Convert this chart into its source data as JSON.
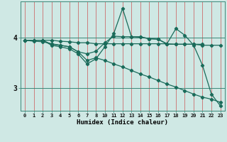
{
  "xlabel": "Humidex (Indice chaleur)",
  "bg_color": "#cfe8e4",
  "line_color": "#1a6b5a",
  "x_all": [
    0,
    1,
    2,
    3,
    4,
    5,
    6,
    7,
    8,
    10,
    11,
    12,
    13,
    14,
    15,
    16,
    17,
    18,
    19,
    20,
    21,
    22,
    23
  ],
  "ylim": [
    2.55,
    4.72
  ],
  "yticks": [
    3,
    4
  ],
  "lines": [
    {
      "x": [
        0,
        1,
        2,
        3,
        4,
        5,
        6,
        7,
        8,
        10,
        11,
        12,
        13,
        14,
        15,
        16,
        17,
        18,
        19,
        20,
        21,
        22,
        23
      ],
      "y": [
        3.95,
        3.95,
        3.95,
        3.95,
        3.93,
        3.92,
        3.9,
        3.9,
        3.88,
        3.88,
        3.88,
        3.88,
        3.88,
        3.88,
        3.88,
        3.88,
        3.88,
        3.87,
        3.87,
        3.87,
        3.85,
        3.85,
        3.85
      ]
    },
    {
      "x": [
        0,
        1,
        2,
        3,
        4,
        5,
        6,
        7,
        8,
        10,
        11,
        12,
        13,
        14,
        15,
        16,
        17,
        18,
        19,
        20,
        21
      ],
      "y": [
        3.95,
        3.95,
        3.95,
        3.87,
        3.85,
        3.82,
        3.72,
        3.68,
        3.73,
        3.9,
        4.03,
        4.02,
        4.02,
        4.01,
        3.98,
        3.97,
        3.87,
        3.87,
        3.87,
        3.87,
        3.87
      ]
    },
    {
      "x": [
        0,
        1,
        2,
        3,
        4,
        5,
        6,
        7,
        8,
        10,
        11,
        12,
        13,
        14,
        15,
        16,
        17,
        18,
        19,
        20,
        21,
        22,
        23
      ],
      "y": [
        3.95,
        3.95,
        3.95,
        3.85,
        3.82,
        3.78,
        3.68,
        3.48,
        3.58,
        3.82,
        4.08,
        4.58,
        4.02,
        4.02,
        3.98,
        3.97,
        3.88,
        4.18,
        4.05,
        3.85,
        3.45,
        2.88,
        2.65
      ]
    },
    {
      "x": [
        0,
        1,
        2,
        3,
        4,
        5,
        6,
        7,
        8,
        10,
        11,
        12,
        13,
        14,
        15,
        16,
        17,
        18,
        19,
        20,
        21,
        22,
        23
      ],
      "y": [
        3.95,
        3.93,
        3.92,
        3.88,
        3.85,
        3.82,
        3.72,
        3.55,
        3.6,
        3.55,
        3.48,
        3.42,
        3.35,
        3.28,
        3.22,
        3.15,
        3.08,
        3.02,
        2.95,
        2.88,
        2.82,
        2.78,
        2.72
      ]
    }
  ]
}
